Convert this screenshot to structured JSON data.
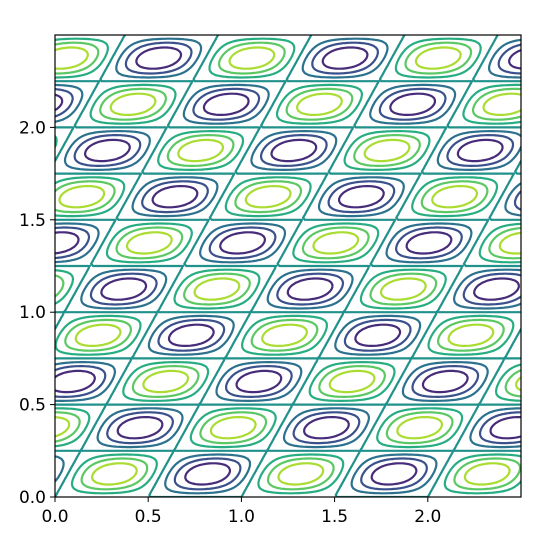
{
  "chart_data": {
    "type": "contour",
    "xlim": [
      0,
      2.5
    ],
    "ylim": [
      0,
      2.5
    ],
    "xticks": [
      {
        "value": 0,
        "label": "0.0"
      },
      {
        "value": 0.5,
        "label": "0.5"
      },
      {
        "value": 1,
        "label": "1.0"
      },
      {
        "value": 1.5,
        "label": "1.5"
      },
      {
        "value": 2,
        "label": "2.0"
      }
    ],
    "yticks": [
      {
        "value": 0,
        "label": "0.0"
      },
      {
        "value": 0.5,
        "label": "0.5"
      },
      {
        "value": 1,
        "label": "1.0"
      },
      {
        "value": 1.5,
        "label": "1.5"
      },
      {
        "value": 2,
        "label": "2.0"
      }
    ],
    "levels": [
      -0.75,
      -0.5,
      -0.25,
      0,
      0.25,
      0.5,
      0.75
    ],
    "colors": [
      "#472c7a",
      "#3b518b",
      "#2c718e",
      "#21918c",
      "#27ad81",
      "#5cc863",
      "#aadc32"
    ]
  }
}
